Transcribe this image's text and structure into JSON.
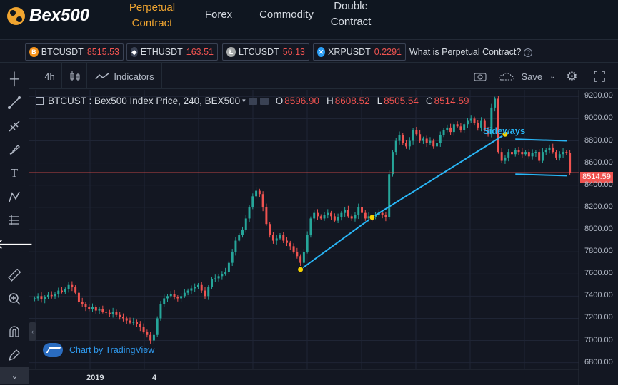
{
  "brand": {
    "name": "Bex500"
  },
  "nav": [
    {
      "label_line1": "Perpetual",
      "label_line2": "Contract",
      "active": true
    },
    {
      "label_line1": "Forex",
      "label_line2": ""
    },
    {
      "label_line1": "Commodity",
      "label_line2": ""
    },
    {
      "label_line1": "Double",
      "label_line2": "Contract"
    }
  ],
  "tickers": [
    {
      "symbol": "BTCUSDT",
      "price": "8515.53",
      "trend": "down",
      "coin_color": "#f7931a",
      "icon": "bitcoin-icon"
    },
    {
      "symbol": "ETHUSDT",
      "price": "163.51",
      "trend": "down",
      "coin_color": "#627eea",
      "icon": "ethereum-icon"
    },
    {
      "symbol": "LTCUSDT",
      "price": "56.13",
      "trend": "down",
      "coin_color": "#a6a9aa",
      "icon": "litecoin-icon"
    },
    {
      "symbol": "XRPUSDT",
      "price": "0.2291",
      "trend": "down",
      "coin_color": "#2a9df4",
      "icon": "ripple-icon"
    }
  ],
  "whatis": "What is Perpetual Contract?",
  "toolbar": {
    "interval": "4h",
    "indicators": "Indicators",
    "save": "Save"
  },
  "legend": {
    "title": "BTCUST : Bex500 Index Price, 240, BEX500",
    "o_label": "O",
    "o": "8596.90",
    "h_label": "H",
    "h": "8608.52",
    "l_label": "L",
    "l": "8505.54",
    "c_label": "C",
    "c": "8514.59"
  },
  "last_price_tag": "8514.59",
  "annotation": "Sideways",
  "watermark": "Chart by TradingView",
  "colors": {
    "up": "#26a69a",
    "down": "#ef5350",
    "accent": "#f0a530",
    "trendline": "#29b6f6"
  },
  "chart_data": {
    "type": "candlestick",
    "y_ticks": [
      "9200.00",
      "9000.00",
      "8800.00",
      "8600.00",
      "8400.00",
      "8200.00",
      "8000.00",
      "7800.00",
      "7600.00",
      "7400.00",
      "7200.00",
      "7000.00",
      "6800.00"
    ],
    "ylim": [
      6740,
      9260
    ],
    "x_labels": [
      "2019",
      "4"
    ],
    "closes": [
      7380,
      7400,
      7370,
      7390,
      7410,
      7400,
      7420,
      7450,
      7440,
      7460,
      7500,
      7480,
      7430,
      7350,
      7330,
      7300,
      7280,
      7300,
      7270,
      7280,
      7260,
      7250,
      7240,
      7260,
      7230,
      7210,
      7200,
      7180,
      7160,
      7170,
      7150,
      7120,
      7080,
      7050,
      7000,
      7050,
      7200,
      7330,
      7380,
      7400,
      7420,
      7390,
      7380,
      7400,
      7430,
      7450,
      7470,
      7480,
      7500,
      7450,
      7400,
      7480,
      7550,
      7560,
      7580,
      7600,
      7620,
      7700,
      7800,
      7900,
      7950,
      8000,
      8100,
      8200,
      8300,
      8350,
      8320,
      8200,
      8050,
      7950,
      7900,
      7920,
      7950,
      7900,
      7880,
      7850,
      7800,
      7760,
      7700,
      7800,
      7950,
      8100,
      8150,
      8120,
      8100,
      8130,
      8150,
      8120,
      8080,
      8110,
      8150,
      8180,
      8120,
      8100,
      8130,
      8200,
      8150,
      8100,
      8120,
      8110,
      8130,
      8150,
      8130,
      8110,
      8500,
      8700,
      8800,
      8850,
      8780,
      8750,
      8800,
      8900,
      8860,
      8800,
      8820,
      8780,
      8800,
      8750,
      8780,
      8850,
      8900,
      8920,
      8880,
      8950,
      8930,
      8900,
      8950,
      8980,
      9000,
      8960,
      8920,
      8980,
      8900,
      8860,
      9100,
      9180,
      8700,
      8620,
      8650,
      8700,
      8680,
      8720,
      8700,
      8680,
      8700,
      8660,
      8690,
      8700,
      8620,
      8700,
      8720,
      8740,
      8700,
      8650,
      8680,
      8700,
      8690,
      8514.59
    ]
  }
}
